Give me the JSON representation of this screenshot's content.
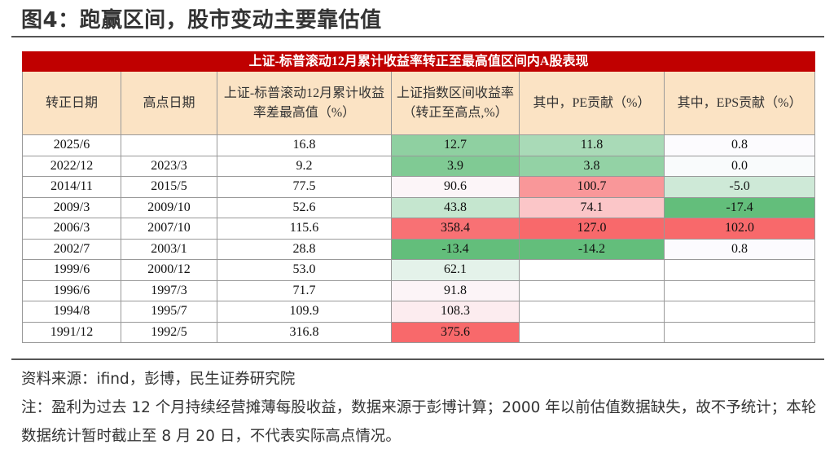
{
  "header": {
    "title": "图4：跑赢区间，股市变动主要靠估值"
  },
  "table": {
    "title": "上证-标普滚动12月累计收益率转正至最高值区间内A股表现",
    "columns": [
      "转正日期",
      "高点日期",
      "上证-标普滚动12月累计收益率差最高值（%）",
      "上证指数区间收益率（转正至高点,%）",
      "其中，PE贡献（%）",
      "其中，EPS贡献（%）"
    ],
    "rows": [
      [
        "2025/6",
        null,
        "16.8",
        "12.7",
        "11.8",
        "0.8"
      ],
      [
        "2022/12",
        "2023/3",
        "9.2",
        "3.9",
        "3.8",
        "0.0"
      ],
      [
        "2014/11",
        "2015/5",
        "77.5",
        "90.6",
        "100.7",
        "-5.0"
      ],
      [
        "2009/3",
        "2009/10",
        "52.6",
        "43.8",
        "74.1",
        "-17.4"
      ],
      [
        "2006/3",
        "2007/10",
        "115.6",
        "358.4",
        "127.0",
        "102.0"
      ],
      [
        "2002/7",
        "2003/1",
        "28.8",
        "-13.4",
        "-14.2",
        "0.8"
      ],
      [
        "1999/6",
        "2000/12",
        "53.0",
        "62.1",
        null,
        null
      ],
      [
        "1996/6",
        "1997/3",
        "71.7",
        "91.8",
        null,
        null
      ],
      [
        "1994/8",
        "1995/7",
        "109.9",
        "108.3",
        null,
        null
      ],
      [
        "1991/12",
        "1992/5",
        "316.8",
        "375.6",
        null,
        null
      ]
    ]
  },
  "footer": {
    "source": "资料来源：ifind，彭博，民生证券研究院",
    "note": "注：盈利为过去 12 个月持续经营摊薄每股收益，数据来源于彭博计算；2000 年以前估值数据缺失，故不予统计；本轮数据统计暂时截止至 8 月 20 日，不代表实际高点情况。"
  }
}
